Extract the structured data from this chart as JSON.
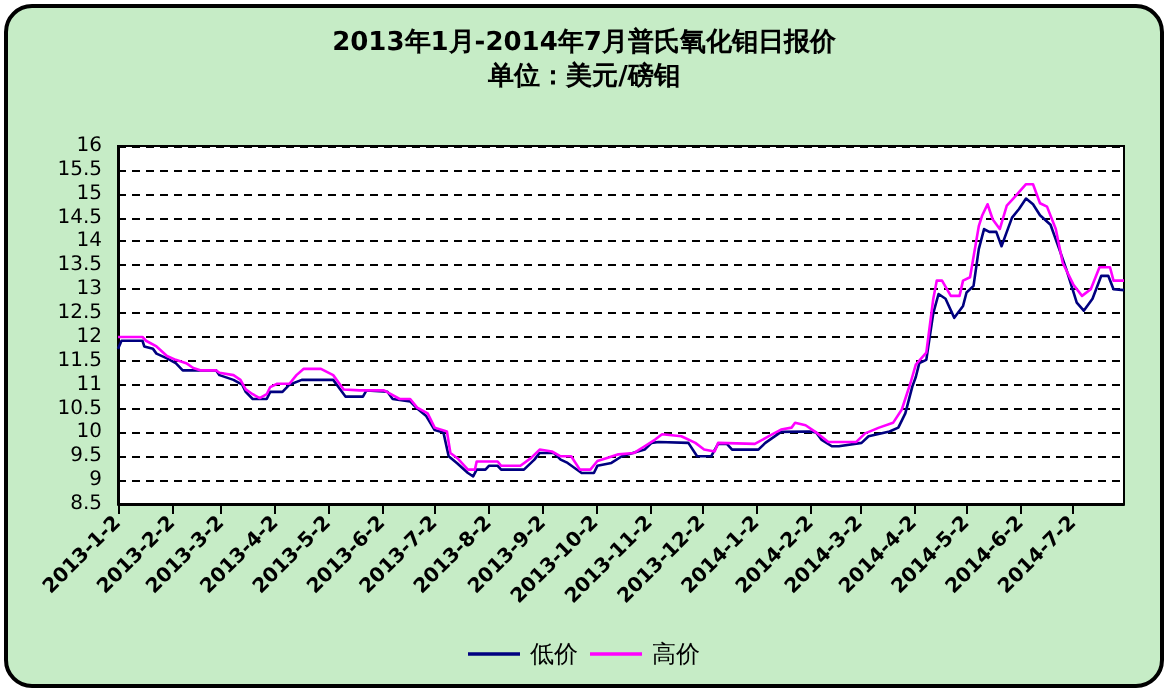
{
  "chart_data": {
    "type": "line",
    "title": "2013年1月-2014年7月普氏氧化钼日报价",
    "subtitle": "单位：美元/磅钼",
    "xlim": [
      "2013-01-02",
      "2014-07-31"
    ],
    "xticks": [
      {
        "value": "2013-01-02",
        "label": "2013-1-2"
      },
      {
        "value": "2013-02-02",
        "label": "2013-2-2"
      },
      {
        "value": "2013-03-02",
        "label": "2013-3-2"
      },
      {
        "value": "2013-04-02",
        "label": "2013-4-2"
      },
      {
        "value": "2013-05-02",
        "label": "2013-5-2"
      },
      {
        "value": "2013-06-02",
        "label": "2013-6-2"
      },
      {
        "value": "2013-07-02",
        "label": "2013-7-2"
      },
      {
        "value": "2013-08-02",
        "label": "2013-8-2"
      },
      {
        "value": "2013-09-02",
        "label": "2013-9-2"
      },
      {
        "value": "2013-10-02",
        "label": "2013-10-2"
      },
      {
        "value": "2013-11-02",
        "label": "2013-11-2"
      },
      {
        "value": "2013-12-02",
        "label": "2013-12-2"
      },
      {
        "value": "2014-01-02",
        "label": "2014-1-2"
      },
      {
        "value": "2014-02-02",
        "label": "2014-2-2"
      },
      {
        "value": "2014-03-02",
        "label": "2014-3-2"
      },
      {
        "value": "2014-04-02",
        "label": "2014-4-2"
      },
      {
        "value": "2014-05-02",
        "label": "2014-5-2"
      },
      {
        "value": "2014-06-02",
        "label": "2014-6-2"
      },
      {
        "value": "2014-07-02",
        "label": "2014-7-2"
      }
    ],
    "ylim": [
      8.5,
      16
    ],
    "yticks": [
      8.5,
      9,
      9.5,
      10,
      10.5,
      11,
      11.5,
      12,
      12.5,
      13,
      13.5,
      14,
      14.5,
      15,
      15.5,
      16
    ],
    "grid": "y",
    "legend": "bottom",
    "marker": "none",
    "series": [
      {
        "name": "低价",
        "color": "#000080",
        "x": [
          "2013-01-02",
          "2013-01-04",
          "2013-01-16",
          "2013-01-17",
          "2013-01-22",
          "2013-01-24",
          "2013-01-30",
          "2013-02-04",
          "2013-02-08",
          "2013-02-27",
          "2013-03-01",
          "2013-03-09",
          "2013-03-14",
          "2013-03-16",
          "2013-03-20",
          "2013-03-28",
          "2013-03-30",
          "2013-04-06",
          "2013-04-10",
          "2013-04-17",
          "2013-05-05",
          "2013-05-08",
          "2013-05-12",
          "2013-05-22",
          "2013-05-24",
          "2013-06-05",
          "2013-06-08",
          "2013-06-18",
          "2013-06-22",
          "2013-06-27",
          "2013-07-02",
          "2013-07-07",
          "2013-07-10",
          "2013-07-15",
          "2013-07-21",
          "2013-07-24",
          "2013-07-26",
          "2013-07-31",
          "2013-08-02",
          "2013-08-07",
          "2013-08-09",
          "2013-08-22",
          "2013-08-28",
          "2013-08-31",
          "2013-09-08",
          "2013-09-12",
          "2013-09-16",
          "2013-09-24",
          "2013-10-01",
          "2013-10-03",
          "2013-10-11",
          "2013-10-17",
          "2013-10-30",
          "2013-11-03",
          "2013-11-07",
          "2013-11-24",
          "2013-11-29",
          "2013-12-07",
          "2013-12-11",
          "2013-12-16",
          "2013-12-19",
          "2014-01-03",
          "2014-01-07",
          "2014-01-16",
          "2014-02-01",
          "2014-02-05",
          "2014-02-08",
          "2014-02-14",
          "2014-02-18",
          "2014-03-03",
          "2014-03-07",
          "2014-03-19",
          "2014-03-24",
          "2014-03-28",
          "2014-04-01",
          "2014-04-03",
          "2014-04-05",
          "2014-04-09",
          "2014-04-13",
          "2014-04-16",
          "2014-04-20",
          "2014-04-25",
          "2014-04-30",
          "2014-05-02",
          "2014-05-06",
          "2014-05-09",
          "2014-05-12",
          "2014-05-15",
          "2014-05-19",
          "2014-05-22",
          "2014-05-25",
          "2014-05-28",
          "2014-06-01",
          "2014-06-05",
          "2014-06-09",
          "2014-06-13",
          "2014-06-19",
          "2014-06-24",
          "2014-06-28",
          "2014-07-04",
          "2014-07-08",
          "2014-07-13",
          "2014-07-18",
          "2014-07-22",
          "2014-07-25",
          "2014-07-31"
        ],
        "values": [
          11.75,
          11.92,
          11.92,
          11.8,
          11.75,
          11.65,
          11.55,
          11.45,
          11.3,
          11.3,
          11.2,
          11.1,
          11.0,
          10.85,
          10.7,
          10.7,
          10.85,
          10.85,
          11.0,
          11.1,
          11.1,
          10.95,
          10.75,
          10.75,
          10.88,
          10.85,
          10.7,
          10.65,
          10.5,
          10.35,
          10.05,
          10.0,
          9.5,
          9.35,
          9.15,
          9.08,
          9.22,
          9.22,
          9.3,
          9.3,
          9.22,
          9.22,
          9.43,
          9.57,
          9.57,
          9.43,
          9.36,
          9.15,
          9.15,
          9.3,
          9.36,
          9.5,
          9.64,
          9.78,
          9.8,
          9.78,
          9.5,
          9.5,
          9.76,
          9.76,
          9.64,
          9.64,
          9.78,
          10.01,
          10.02,
          10.0,
          9.85,
          9.71,
          9.71,
          9.78,
          9.92,
          10.02,
          10.1,
          10.4,
          10.96,
          11.16,
          11.45,
          11.52,
          12.5,
          12.9,
          12.8,
          12.4,
          12.65,
          12.93,
          13.07,
          13.84,
          14.26,
          14.2,
          14.2,
          13.9,
          14.2,
          14.5,
          14.68,
          14.9,
          14.78,
          14.55,
          14.35,
          13.84,
          13.42,
          12.72,
          12.55,
          12.8,
          13.28,
          13.28,
          13.0,
          12.98
        ]
      },
      {
        "name": "高价",
        "color": "#ff00ff",
        "x": [
          "2013-01-02",
          "2013-01-16",
          "2013-01-18",
          "2013-01-24",
          "2013-01-30",
          "2013-02-04",
          "2013-02-10",
          "2013-02-14",
          "2013-02-18",
          "2013-02-27",
          "2013-03-01",
          "2013-03-09",
          "2013-03-13",
          "2013-03-16",
          "2013-03-20",
          "2013-03-24",
          "2013-03-28",
          "2013-03-30",
          "2013-04-03",
          "2013-04-10",
          "2013-04-14",
          "2013-04-18",
          "2013-04-28",
          "2013-05-05",
          "2013-05-11",
          "2013-05-20",
          "2013-06-03",
          "2013-06-07",
          "2013-06-12",
          "2013-06-18",
          "2013-06-22",
          "2013-06-28",
          "2013-07-02",
          "2013-07-09",
          "2013-07-11",
          "2013-07-15",
          "2013-07-21",
          "2013-07-25",
          "2013-07-26",
          "2013-08-07",
          "2013-08-09",
          "2013-08-20",
          "2013-08-26",
          "2013-08-31",
          "2013-09-07",
          "2013-09-12",
          "2013-09-18",
          "2013-09-23",
          "2013-09-29",
          "2013-10-03",
          "2013-10-09",
          "2013-10-15",
          "2013-10-24",
          "2013-10-30",
          "2013-11-05",
          "2013-11-09",
          "2013-11-20",
          "2013-11-28",
          "2013-12-03",
          "2013-12-09",
          "2013-12-11",
          "2014-01-01",
          "2014-01-09",
          "2014-01-16",
          "2014-01-22",
          "2014-01-24",
          "2014-01-30",
          "2014-02-05",
          "2014-02-12",
          "2014-02-28",
          "2014-03-05",
          "2014-03-13",
          "2014-03-21",
          "2014-03-26",
          "2014-03-31",
          "2014-04-03",
          "2014-04-09",
          "2014-04-13",
          "2014-04-15",
          "2014-04-18",
          "2014-04-23",
          "2014-04-28",
          "2014-04-30",
          "2014-05-04",
          "2014-05-09",
          "2014-05-11",
          "2014-05-14",
          "2014-05-17",
          "2014-05-21",
          "2014-05-25",
          "2014-05-30",
          "2014-06-05",
          "2014-06-09",
          "2014-06-13",
          "2014-06-17",
          "2014-06-22",
          "2014-06-26",
          "2014-07-02",
          "2014-07-07",
          "2014-07-12",
          "2014-07-17",
          "2014-07-23",
          "2014-07-25",
          "2014-07-31"
        ],
        "values": [
          12.0,
          12.0,
          11.92,
          11.8,
          11.6,
          11.52,
          11.45,
          11.35,
          11.3,
          11.3,
          11.25,
          11.2,
          11.1,
          10.9,
          10.8,
          10.72,
          10.8,
          10.95,
          11.02,
          11.02,
          11.2,
          11.33,
          11.33,
          11.2,
          10.9,
          10.88,
          10.88,
          10.8,
          10.7,
          10.7,
          10.52,
          10.4,
          10.1,
          10.02,
          9.57,
          9.46,
          9.22,
          9.22,
          9.39,
          9.39,
          9.3,
          9.3,
          9.46,
          9.64,
          9.6,
          9.5,
          9.5,
          9.22,
          9.22,
          9.4,
          9.47,
          9.54,
          9.57,
          9.71,
          9.85,
          9.96,
          9.92,
          9.78,
          9.64,
          9.6,
          9.78,
          9.76,
          9.92,
          10.06,
          10.1,
          10.2,
          10.15,
          10.0,
          9.8,
          9.8,
          9.98,
          10.1,
          10.2,
          10.48,
          11.04,
          11.42,
          11.67,
          12.8,
          13.18,
          13.18,
          12.86,
          12.86,
          13.18,
          13.25,
          14.32,
          14.55,
          14.78,
          14.46,
          14.26,
          14.75,
          14.95,
          15.2,
          15.2,
          14.8,
          14.73,
          14.26,
          13.55,
          13.1,
          12.86,
          13.0,
          13.46,
          13.46,
          13.18,
          13.18
        ]
      }
    ]
  }
}
